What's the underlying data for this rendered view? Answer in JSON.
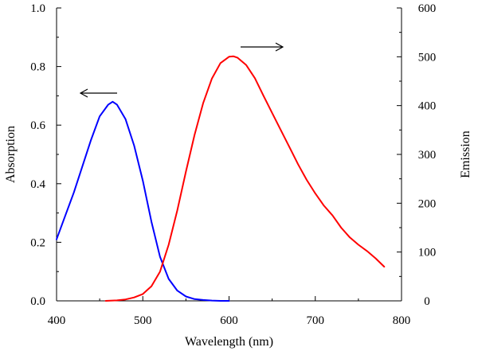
{
  "chart_data": {
    "type": "line",
    "xlabel": "Wavelength (nm)",
    "ylabel_left": "Absorption",
    "ylabel_right": "Emission",
    "xlim": [
      400,
      800
    ],
    "ylim_left": [
      0,
      1.0
    ],
    "ylim_right": [
      0,
      600
    ],
    "x_ticks": [
      400,
      500,
      600,
      700,
      800
    ],
    "y_left_ticks": [
      0.0,
      0.2,
      0.4,
      0.6,
      0.8,
      1.0
    ],
    "y_left_tick_labels": [
      "0.0",
      "0.2",
      "0.4",
      "0.6",
      "0.8",
      "1.0"
    ],
    "y_right_ticks": [
      0,
      100,
      200,
      300,
      400,
      500,
      600
    ],
    "grid": false,
    "series": [
      {
        "axis": "left",
        "color": "#0000ff",
        "x": [
          400,
          410,
          420,
          430,
          440,
          450,
          460,
          465,
          470,
          480,
          490,
          500,
          510,
          520,
          530,
          540,
          550,
          560,
          570,
          580,
          590,
          600
        ],
        "y": [
          0.21,
          0.29,
          0.37,
          0.46,
          0.55,
          0.63,
          0.67,
          0.68,
          0.67,
          0.62,
          0.53,
          0.41,
          0.27,
          0.15,
          0.075,
          0.035,
          0.015,
          0.006,
          0.003,
          0.001,
          0.0,
          0.0
        ]
      },
      {
        "axis": "right",
        "color": "#ff0000",
        "x": [
          457,
          470,
          480,
          490,
          500,
          510,
          520,
          530,
          540,
          550,
          560,
          570,
          580,
          590,
          600,
          605,
          610,
          620,
          630,
          640,
          650,
          660,
          670,
          680,
          690,
          700,
          710,
          720,
          730,
          740,
          750,
          760,
          770,
          780
        ],
        "y": [
          0,
          1,
          3,
          7,
          14,
          30,
          60,
          115,
          185,
          265,
          340,
          405,
          455,
          487,
          500,
          501,
          498,
          483,
          456,
          420,
          385,
          350,
          315,
          280,
          248,
          220,
          195,
          175,
          150,
          130,
          115,
          102,
          87,
          70
        ]
      }
    ],
    "annotations": [
      {
        "type": "arrow",
        "direction": "left",
        "meaning": "absorption curve uses left axis"
      },
      {
        "type": "arrow",
        "direction": "right",
        "meaning": "emission curve uses right axis"
      }
    ]
  }
}
